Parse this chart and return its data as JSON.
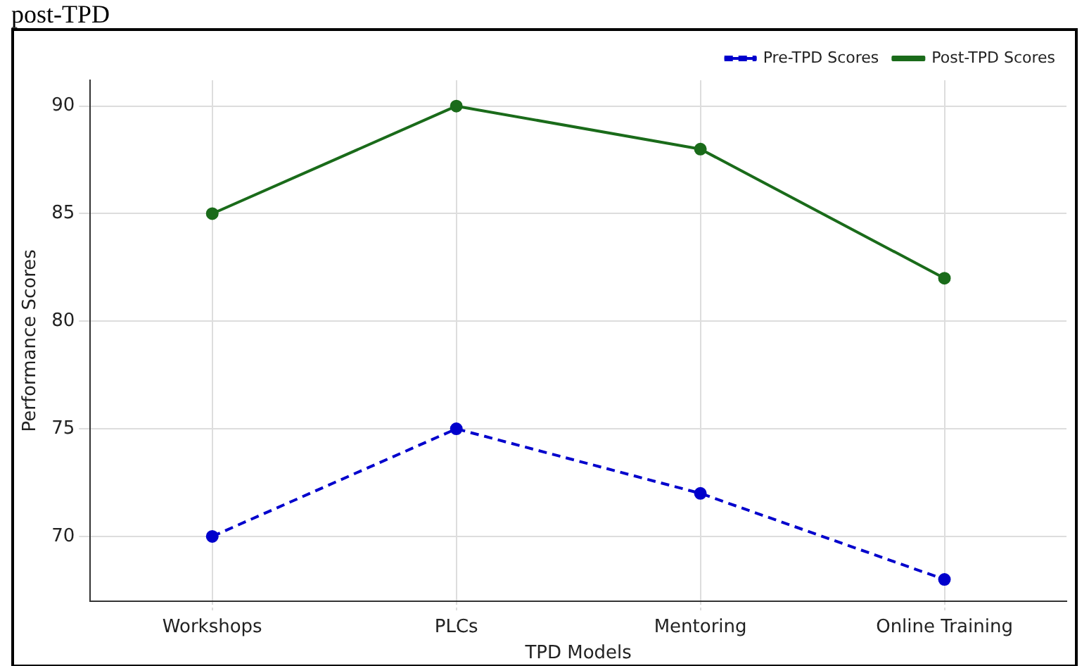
{
  "chart_data": {
    "type": "line",
    "title": "post-TPD",
    "xlabel": "TPD Models",
    "ylabel": "Performance Scores",
    "categories": [
      "Workshops",
      "PLCs",
      "Mentoring",
      "Online Training"
    ],
    "series": [
      {
        "name": "Pre-TPD Scores",
        "color": "#0000cc",
        "values": [
          70,
          75,
          72,
          68
        ],
        "line_style": "dashed"
      },
      {
        "name": "Post-TPD Scores",
        "color": "#1a6b1a",
        "values": [
          85,
          90,
          88,
          82
        ],
        "line_style": "solid"
      }
    ],
    "ylim": [
      67,
      91.2
    ],
    "yticks": [
      70,
      75,
      80,
      85,
      90
    ],
    "grid": true,
    "legend": "top right",
    "marker": "circle"
  }
}
